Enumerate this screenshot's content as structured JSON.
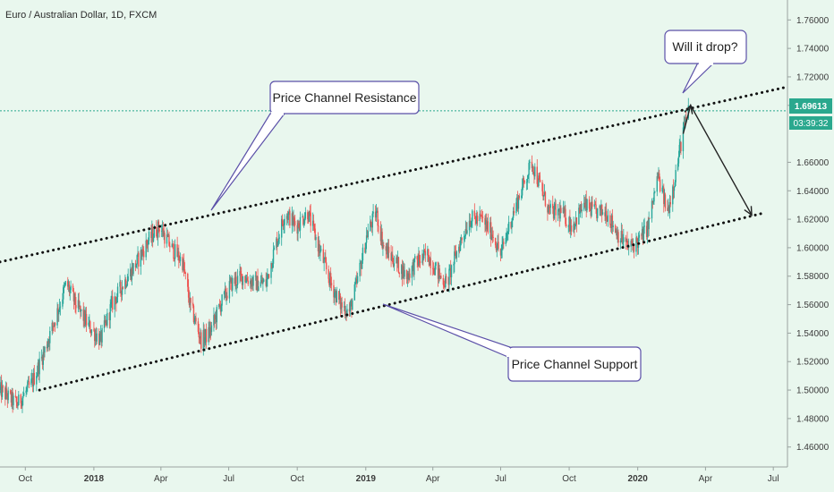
{
  "header": {
    "title": "Euro / Australian Dollar, 1D, FXCM"
  },
  "colors": {
    "background": "#e9f7ee",
    "up": "#26a69a",
    "down": "#ef5350",
    "price_line": "#2aa88e",
    "callout_border": "#5b50a8",
    "badge": "#2aa88e"
  },
  "chart_data": {
    "type": "candlestick",
    "instrument": "Euro / Australian Dollar",
    "timeframe": "1D",
    "source": "FXCM",
    "ylim": [
      1.446,
      1.774
    ],
    "yticks": [
      "1.76000",
      "1.74000",
      "1.72000",
      "1.70000",
      "1.66000",
      "1.64000",
      "1.62000",
      "1.60000",
      "1.58000",
      "1.56000",
      "1.54000",
      "1.52000",
      "1.50000",
      "1.48000",
      "1.46000"
    ],
    "xlim": [
      "2017-08-28",
      "2020-07-20"
    ],
    "xticks": [
      {
        "label": "Oct",
        "date": "2017-10-01",
        "bold": false
      },
      {
        "label": "2018",
        "date": "2018-01-01",
        "bold": true
      },
      {
        "label": "Apr",
        "date": "2018-04-01",
        "bold": false
      },
      {
        "label": "Jul",
        "date": "2018-07-01",
        "bold": false
      },
      {
        "label": "Oct",
        "date": "2018-10-01",
        "bold": false
      },
      {
        "label": "2019",
        "date": "2019-01-01",
        "bold": true
      },
      {
        "label": "Apr",
        "date": "2019-04-01",
        "bold": false
      },
      {
        "label": "Jul",
        "date": "2019-07-01",
        "bold": false
      },
      {
        "label": "Oct",
        "date": "2019-10-01",
        "bold": false
      },
      {
        "label": "2020",
        "date": "2020-01-01",
        "bold": true
      },
      {
        "label": "Apr",
        "date": "2020-04-01",
        "bold": false
      },
      {
        "label": "Jul",
        "date": "2020-07-01",
        "bold": false
      }
    ],
    "price_path": [
      [
        "2017-08-28",
        1.5
      ],
      [
        "2017-09-20",
        1.49
      ],
      [
        "2017-10-10",
        1.505
      ],
      [
        "2017-10-25",
        1.525
      ],
      [
        "2017-11-10",
        1.55
      ],
      [
        "2017-11-25",
        1.575
      ],
      [
        "2017-12-08",
        1.56
      ],
      [
        "2017-12-25",
        1.545
      ],
      [
        "2018-01-10",
        1.535
      ],
      [
        "2018-01-25",
        1.56
      ],
      [
        "2018-02-10",
        1.575
      ],
      [
        "2018-02-28",
        1.59
      ],
      [
        "2018-03-15",
        1.605
      ],
      [
        "2018-03-30",
        1.615
      ],
      [
        "2018-04-15",
        1.6
      ],
      [
        "2018-04-30",
        1.59
      ],
      [
        "2018-05-10",
        1.56
      ],
      [
        "2018-05-25",
        1.535
      ],
      [
        "2018-06-05",
        1.54
      ],
      [
        "2018-06-20",
        1.56
      ],
      [
        "2018-07-05",
        1.575
      ],
      [
        "2018-07-20",
        1.58
      ],
      [
        "2018-08-05",
        1.575
      ],
      [
        "2018-08-20",
        1.575
      ],
      [
        "2018-09-01",
        1.6
      ],
      [
        "2018-09-15",
        1.625
      ],
      [
        "2018-09-30",
        1.615
      ],
      [
        "2018-10-15",
        1.625
      ],
      [
        "2018-10-30",
        1.6
      ],
      [
        "2018-11-15",
        1.575
      ],
      [
        "2018-11-28",
        1.56
      ],
      [
        "2018-12-10",
        1.555
      ],
      [
        "2018-12-20",
        1.575
      ],
      [
        "2019-01-03",
        1.61
      ],
      [
        "2019-01-15",
        1.625
      ],
      [
        "2019-01-25",
        1.6
      ],
      [
        "2019-02-10",
        1.59
      ],
      [
        "2019-02-25",
        1.58
      ],
      [
        "2019-03-10",
        1.59
      ],
      [
        "2019-03-25",
        1.595
      ],
      [
        "2019-04-10",
        1.58
      ],
      [
        "2019-04-20",
        1.575
      ],
      [
        "2019-05-05",
        1.6
      ],
      [
        "2019-05-20",
        1.62
      ],
      [
        "2019-06-05",
        1.62
      ],
      [
        "2019-06-20",
        1.61
      ],
      [
        "2019-07-01",
        1.595
      ],
      [
        "2019-07-15",
        1.62
      ],
      [
        "2019-08-01",
        1.645
      ],
      [
        "2019-08-12",
        1.66
      ],
      [
        "2019-08-25",
        1.64
      ],
      [
        "2019-09-05",
        1.625
      ],
      [
        "2019-09-20",
        1.625
      ],
      [
        "2019-10-05",
        1.615
      ],
      [
        "2019-10-20",
        1.63
      ],
      [
        "2019-11-05",
        1.625
      ],
      [
        "2019-11-20",
        1.625
      ],
      [
        "2019-12-05",
        1.61
      ],
      [
        "2019-12-20",
        1.6
      ],
      [
        "2020-01-03",
        1.605
      ],
      [
        "2020-01-15",
        1.615
      ],
      [
        "2020-01-28",
        1.65
      ],
      [
        "2020-02-10",
        1.625
      ],
      [
        "2020-02-22",
        1.655
      ],
      [
        "2020-03-01",
        1.68
      ],
      [
        "2020-03-09",
        1.696
      ]
    ],
    "last_price": "1.69613",
    "countdown": "03:39:32",
    "trendlines": [
      {
        "name": "resistance",
        "from": [
          "2017-08-28",
          1.59
        ],
        "to": [
          "2020-07-20",
          1.713
        ]
      },
      {
        "name": "support",
        "from": [
          "2017-10-20",
          1.5
        ],
        "to": [
          "2020-06-15",
          1.624
        ]
      }
    ],
    "forecast_arrow": [
      [
        "2020-03-02",
        1.68
      ],
      [
        "2020-03-12",
        1.7
      ],
      [
        "2020-06-02",
        1.623
      ]
    ]
  },
  "annotations": {
    "resistance": "Price Channel Resistance",
    "support": "Price Channel Support",
    "question": "Will it drop?"
  }
}
